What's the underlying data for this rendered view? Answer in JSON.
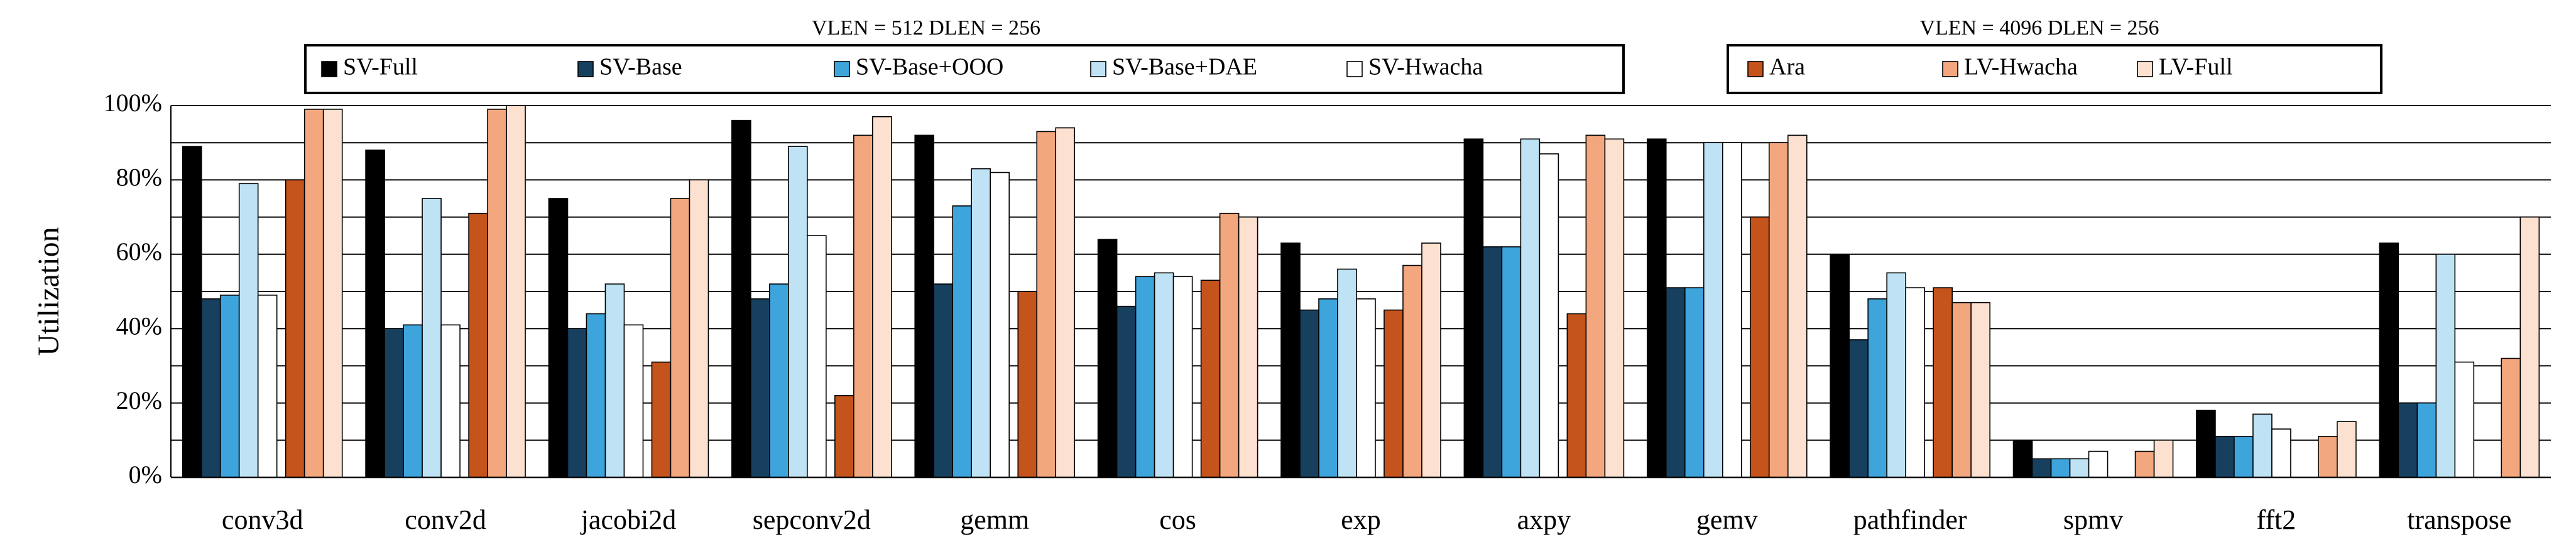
{
  "chart_data": {
    "type": "bar",
    "title": "",
    "xlabel": "",
    "ylabel": "Utilization",
    "ylim": [
      0,
      100
    ],
    "yticks": [
      0,
      20,
      40,
      60,
      80,
      100
    ],
    "ytick_labels": [
      "0%",
      "20%",
      "40%",
      "60%",
      "80%",
      "100%"
    ],
    "grid": true,
    "legend_groups": [
      {
        "title": "VLEN = 512 DLEN = 256",
        "series_names": [
          "SV-Full",
          "SV-Base",
          "SV-Base+OOO",
          "SV-Base+DAE",
          "SV-Hwacha"
        ]
      },
      {
        "title": "VLEN = 4096 DLEN = 256",
        "series_names": [
          "Ara",
          "LV-Hwacha",
          "LV-Full"
        ]
      }
    ],
    "categories": [
      "conv3d",
      "conv2d",
      "jacobi2d",
      "sepconv2d",
      "gemm",
      "cos",
      "exp",
      "axpy",
      "gemv",
      "pathfinder",
      "spmv",
      "fft2",
      "transpose"
    ],
    "series": [
      {
        "name": "SV-Full",
        "color": "#000000",
        "values": [
          89,
          88,
          75,
          96,
          92,
          64,
          63,
          91,
          91,
          60,
          10,
          18,
          63
        ]
      },
      {
        "name": "SV-Base",
        "color": "#17405f",
        "values": [
          48,
          40,
          40,
          48,
          52,
          46,
          45,
          62,
          51,
          37,
          5,
          11,
          20
        ]
      },
      {
        "name": "SV-Base+OOO",
        "color": "#3ea4dc",
        "values": [
          49,
          41,
          44,
          52,
          73,
          54,
          48,
          62,
          51,
          48,
          5,
          11,
          20
        ]
      },
      {
        "name": "SV-Base+DAE",
        "color": "#bfe3f4",
        "values": [
          79,
          75,
          52,
          89,
          83,
          55,
          56,
          91,
          90,
          55,
          5,
          17,
          60
        ]
      },
      {
        "name": "SV-Hwacha",
        "color": "#ffffff",
        "values": [
          49,
          41,
          41,
          65,
          82,
          54,
          48,
          87,
          90,
          51,
          7,
          13,
          31
        ]
      },
      {
        "name": "Ara",
        "color": "#c4531c",
        "values": [
          80,
          71,
          31,
          22,
          50,
          53,
          45,
          44,
          70,
          51,
          0,
          0,
          0
        ]
      },
      {
        "name": "LV-Hwacha",
        "color": "#f3a77e",
        "values": [
          99,
          99,
          75,
          92,
          93,
          71,
          57,
          92,
          90,
          47,
          7,
          11,
          32
        ]
      },
      {
        "name": "LV-Full",
        "color": "#fce0d0",
        "values": [
          99,
          100,
          80,
          97,
          94,
          70,
          63,
          91,
          92,
          47,
          10,
          15,
          70
        ]
      }
    ]
  }
}
